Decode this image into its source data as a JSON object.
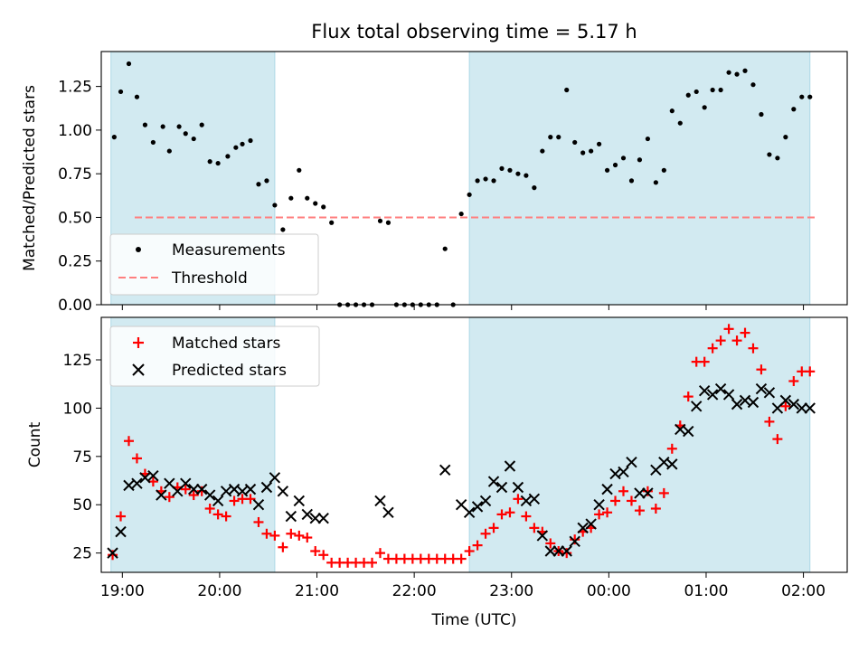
{
  "figure": {
    "title": "Flux total observing time = 5.17 h",
    "xlabel": "Time (UTC)",
    "x_ticks": [
      "19:00",
      "20:00",
      "21:00",
      "22:00",
      "23:00",
      "00:00",
      "01:00",
      "02:00"
    ],
    "band_color": "#add8e6",
    "shaded_bands": [
      {
        "start": "18:53",
        "end": "20:34"
      },
      {
        "start": "22:34",
        "end": "02:04"
      }
    ]
  },
  "chart_data": [
    {
      "type": "scatter",
      "ylabel": "Matched/Predicted stars",
      "ylim": [
        0,
        1.45
      ],
      "y_ticks": [
        "0.00",
        "0.25",
        "0.50",
        "0.75",
        "1.00",
        "1.25"
      ],
      "legend_position": "lower-left",
      "threshold": {
        "name": "Threshold",
        "value": 0.5,
        "color": "#ff7f7f"
      },
      "series": [
        {
          "name": "Measurements",
          "color": "#000000",
          "x": [
            "18:55",
            "18:59",
            "19:04",
            "19:09",
            "19:14",
            "19:19",
            "19:25",
            "19:29",
            "19:35",
            "19:39",
            "19:44",
            "19:49",
            "19:54",
            "19:59",
            "20:05",
            "20:10",
            "20:14",
            "20:19",
            "20:24",
            "20:29",
            "20:34",
            "20:39",
            "20:44",
            "20:49",
            "20:54",
            "20:59",
            "21:04",
            "21:09",
            "21:14",
            "21:19",
            "21:24",
            "21:29",
            "21:34",
            "21:39",
            "21:44",
            "21:49",
            "21:54",
            "21:59",
            "22:04",
            "22:09",
            "22:14",
            "22:19",
            "22:24",
            "22:29",
            "22:34",
            "22:39",
            "22:44",
            "22:49",
            "22:54",
            "22:59",
            "23:04",
            "23:09",
            "23:14",
            "23:19",
            "23:24",
            "23:29",
            "23:34",
            "23:39",
            "23:44",
            "23:49",
            "23:54",
            "23:59",
            "00:04",
            "00:09",
            "00:14",
            "00:19",
            "00:24",
            "00:29",
            "00:34",
            "00:39",
            "00:44",
            "00:49",
            "00:54",
            "00:59",
            "01:04",
            "01:09",
            "01:14",
            "01:19",
            "01:24",
            "01:29",
            "01:34",
            "01:39",
            "01:44",
            "01:49",
            "01:54",
            "01:59",
            "02:04"
          ],
          "y": [
            0.96,
            1.22,
            1.38,
            1.19,
            1.03,
            0.93,
            1.02,
            0.88,
            1.02,
            0.98,
            0.95,
            1.03,
            0.82,
            0.81,
            0.85,
            0.9,
            0.92,
            0.94,
            0.69,
            0.71,
            0.57,
            0.43,
            0.61,
            0.77,
            0.61,
            0.58,
            0.56,
            0.47,
            0.0,
            0.0,
            0.0,
            0.0,
            0.0,
            0.48,
            0.47,
            0.0,
            0.0,
            0.0,
            0.0,
            0.0,
            0.0,
            0.32,
            0.0,
            0.52,
            0.63,
            0.71,
            0.72,
            0.71,
            0.78,
            0.77,
            0.75,
            0.74,
            0.67,
            0.88,
            0.96,
            0.96,
            1.23,
            0.93,
            0.87,
            0.88,
            0.92,
            0.77,
            0.8,
            0.84,
            0.71,
            0.83,
            0.95,
            0.7,
            0.77,
            1.11,
            1.04,
            1.2,
            1.22,
            1.13,
            1.23,
            1.23,
            1.33,
            1.32,
            1.34,
            1.26,
            1.09,
            0.86,
            0.84,
            0.96,
            1.12,
            1.19,
            1.19
          ]
        }
      ]
    },
    {
      "type": "scatter",
      "ylabel": "Count",
      "ylim": [
        15,
        147
      ],
      "y_ticks": [
        "25",
        "50",
        "75",
        "100",
        "125"
      ],
      "legend_position": "upper-left",
      "series": [
        {
          "name": "Matched stars",
          "color": "#ff0000",
          "marker": "+",
          "x": [
            "18:54",
            "18:59",
            "19:04",
            "19:09",
            "19:14",
            "19:19",
            "19:24",
            "19:29",
            "19:34",
            "19:39",
            "19:44",
            "19:49",
            "19:54",
            "19:59",
            "20:04",
            "20:09",
            "20:14",
            "20:19",
            "20:24",
            "20:29",
            "20:34",
            "20:39",
            "20:44",
            "20:49",
            "20:54",
            "20:59",
            "21:04",
            "21:09",
            "21:14",
            "21:19",
            "21:24",
            "21:29",
            "21:34",
            "21:39",
            "21:44",
            "21:49",
            "21:54",
            "21:59",
            "22:04",
            "22:09",
            "22:14",
            "22:19",
            "22:24",
            "22:29",
            "22:34",
            "22:39",
            "22:44",
            "22:49",
            "22:54",
            "22:59",
            "23:04",
            "23:09",
            "23:14",
            "23:19",
            "23:24",
            "23:29",
            "23:34",
            "23:39",
            "23:44",
            "23:49",
            "23:54",
            "23:59",
            "00:04",
            "00:09",
            "00:14",
            "00:19",
            "00:24",
            "00:29",
            "00:34",
            "00:39",
            "00:44",
            "00:49",
            "00:54",
            "00:59",
            "01:04",
            "01:09",
            "01:14",
            "01:19",
            "01:24",
            "01:29",
            "01:34",
            "01:39",
            "01:44",
            "01:49",
            "01:54",
            "01:59",
            "02:04"
          ],
          "y": [
            24,
            44,
            83,
            74,
            66,
            62,
            57,
            54,
            59,
            58,
            55,
            57,
            48,
            45,
            44,
            52,
            53,
            53,
            41,
            35,
            34,
            28,
            35,
            34,
            33,
            26,
            24,
            20,
            20,
            20,
            20,
            20,
            20,
            25,
            22,
            22,
            22,
            22,
            22,
            22,
            22,
            22,
            22,
            22,
            26,
            29,
            35,
            38,
            45,
            46,
            53,
            44,
            38,
            36,
            30,
            26,
            25,
            32,
            36,
            38,
            45,
            46,
            52,
            57,
            52,
            47,
            57,
            48,
            56,
            79,
            91,
            106,
            124,
            124,
            131,
            135,
            141,
            135,
            139,
            131,
            120,
            93,
            84,
            101,
            114,
            119,
            119
          ]
        },
        {
          "name": "Predicted stars",
          "color": "#000000",
          "marker": "x",
          "x": [
            "18:54",
            "18:59",
            "19:04",
            "19:09",
            "19:14",
            "19:19",
            "19:24",
            "19:29",
            "19:34",
            "19:39",
            "19:44",
            "19:49",
            "19:54",
            "19:59",
            "20:04",
            "20:09",
            "20:14",
            "20:19",
            "20:24",
            "20:29",
            "20:34",
            "20:39",
            "20:44",
            "20:49",
            "20:54",
            "20:59",
            "21:04",
            "21:09",
            "21:14",
            "21:19",
            "21:24",
            "21:29",
            "21:34",
            "21:39",
            "21:44",
            "21:49",
            "21:54",
            "21:59",
            "22:04",
            "22:09",
            "22:14",
            "22:19",
            "22:24",
            "22:29",
            "22:34",
            "22:39",
            "22:44",
            "22:49",
            "22:54",
            "22:59",
            "23:04",
            "23:09",
            "23:14",
            "23:19",
            "23:24",
            "23:29",
            "23:34",
            "23:39",
            "23:44",
            "23:49",
            "23:54",
            "23:59",
            "00:04",
            "00:09",
            "00:14",
            "00:19",
            "00:24",
            "00:29",
            "00:34",
            "00:39",
            "00:44",
            "00:49",
            "00:54",
            "00:59",
            "01:04",
            "01:09",
            "01:14",
            "01:19",
            "01:24",
            "01:29",
            "01:34",
            "01:39",
            "01:44",
            "01:49",
            "01:54",
            "01:59",
            "02:04"
          ],
          "y": [
            25,
            36,
            60,
            61,
            64,
            65,
            55,
            61,
            57,
            61,
            58,
            58,
            55,
            52,
            57,
            58,
            57,
            58,
            50,
            59,
            64,
            57,
            44,
            52,
            45,
            43,
            43,
            null,
            null,
            null,
            null,
            null,
            null,
            52,
            46,
            null,
            null,
            null,
            null,
            null,
            null,
            68,
            null,
            50,
            46,
            49,
            52,
            62,
            59,
            70,
            59,
            52,
            53,
            34,
            26,
            26,
            26,
            31,
            38,
            40,
            50,
            58,
            66,
            67,
            72,
            56,
            56,
            68,
            72,
            71,
            89,
            88,
            101,
            109,
            107,
            110,
            107,
            102,
            104,
            103,
            110,
            108,
            100,
            104,
            102,
            100,
            100
          ]
        }
      ]
    }
  ]
}
